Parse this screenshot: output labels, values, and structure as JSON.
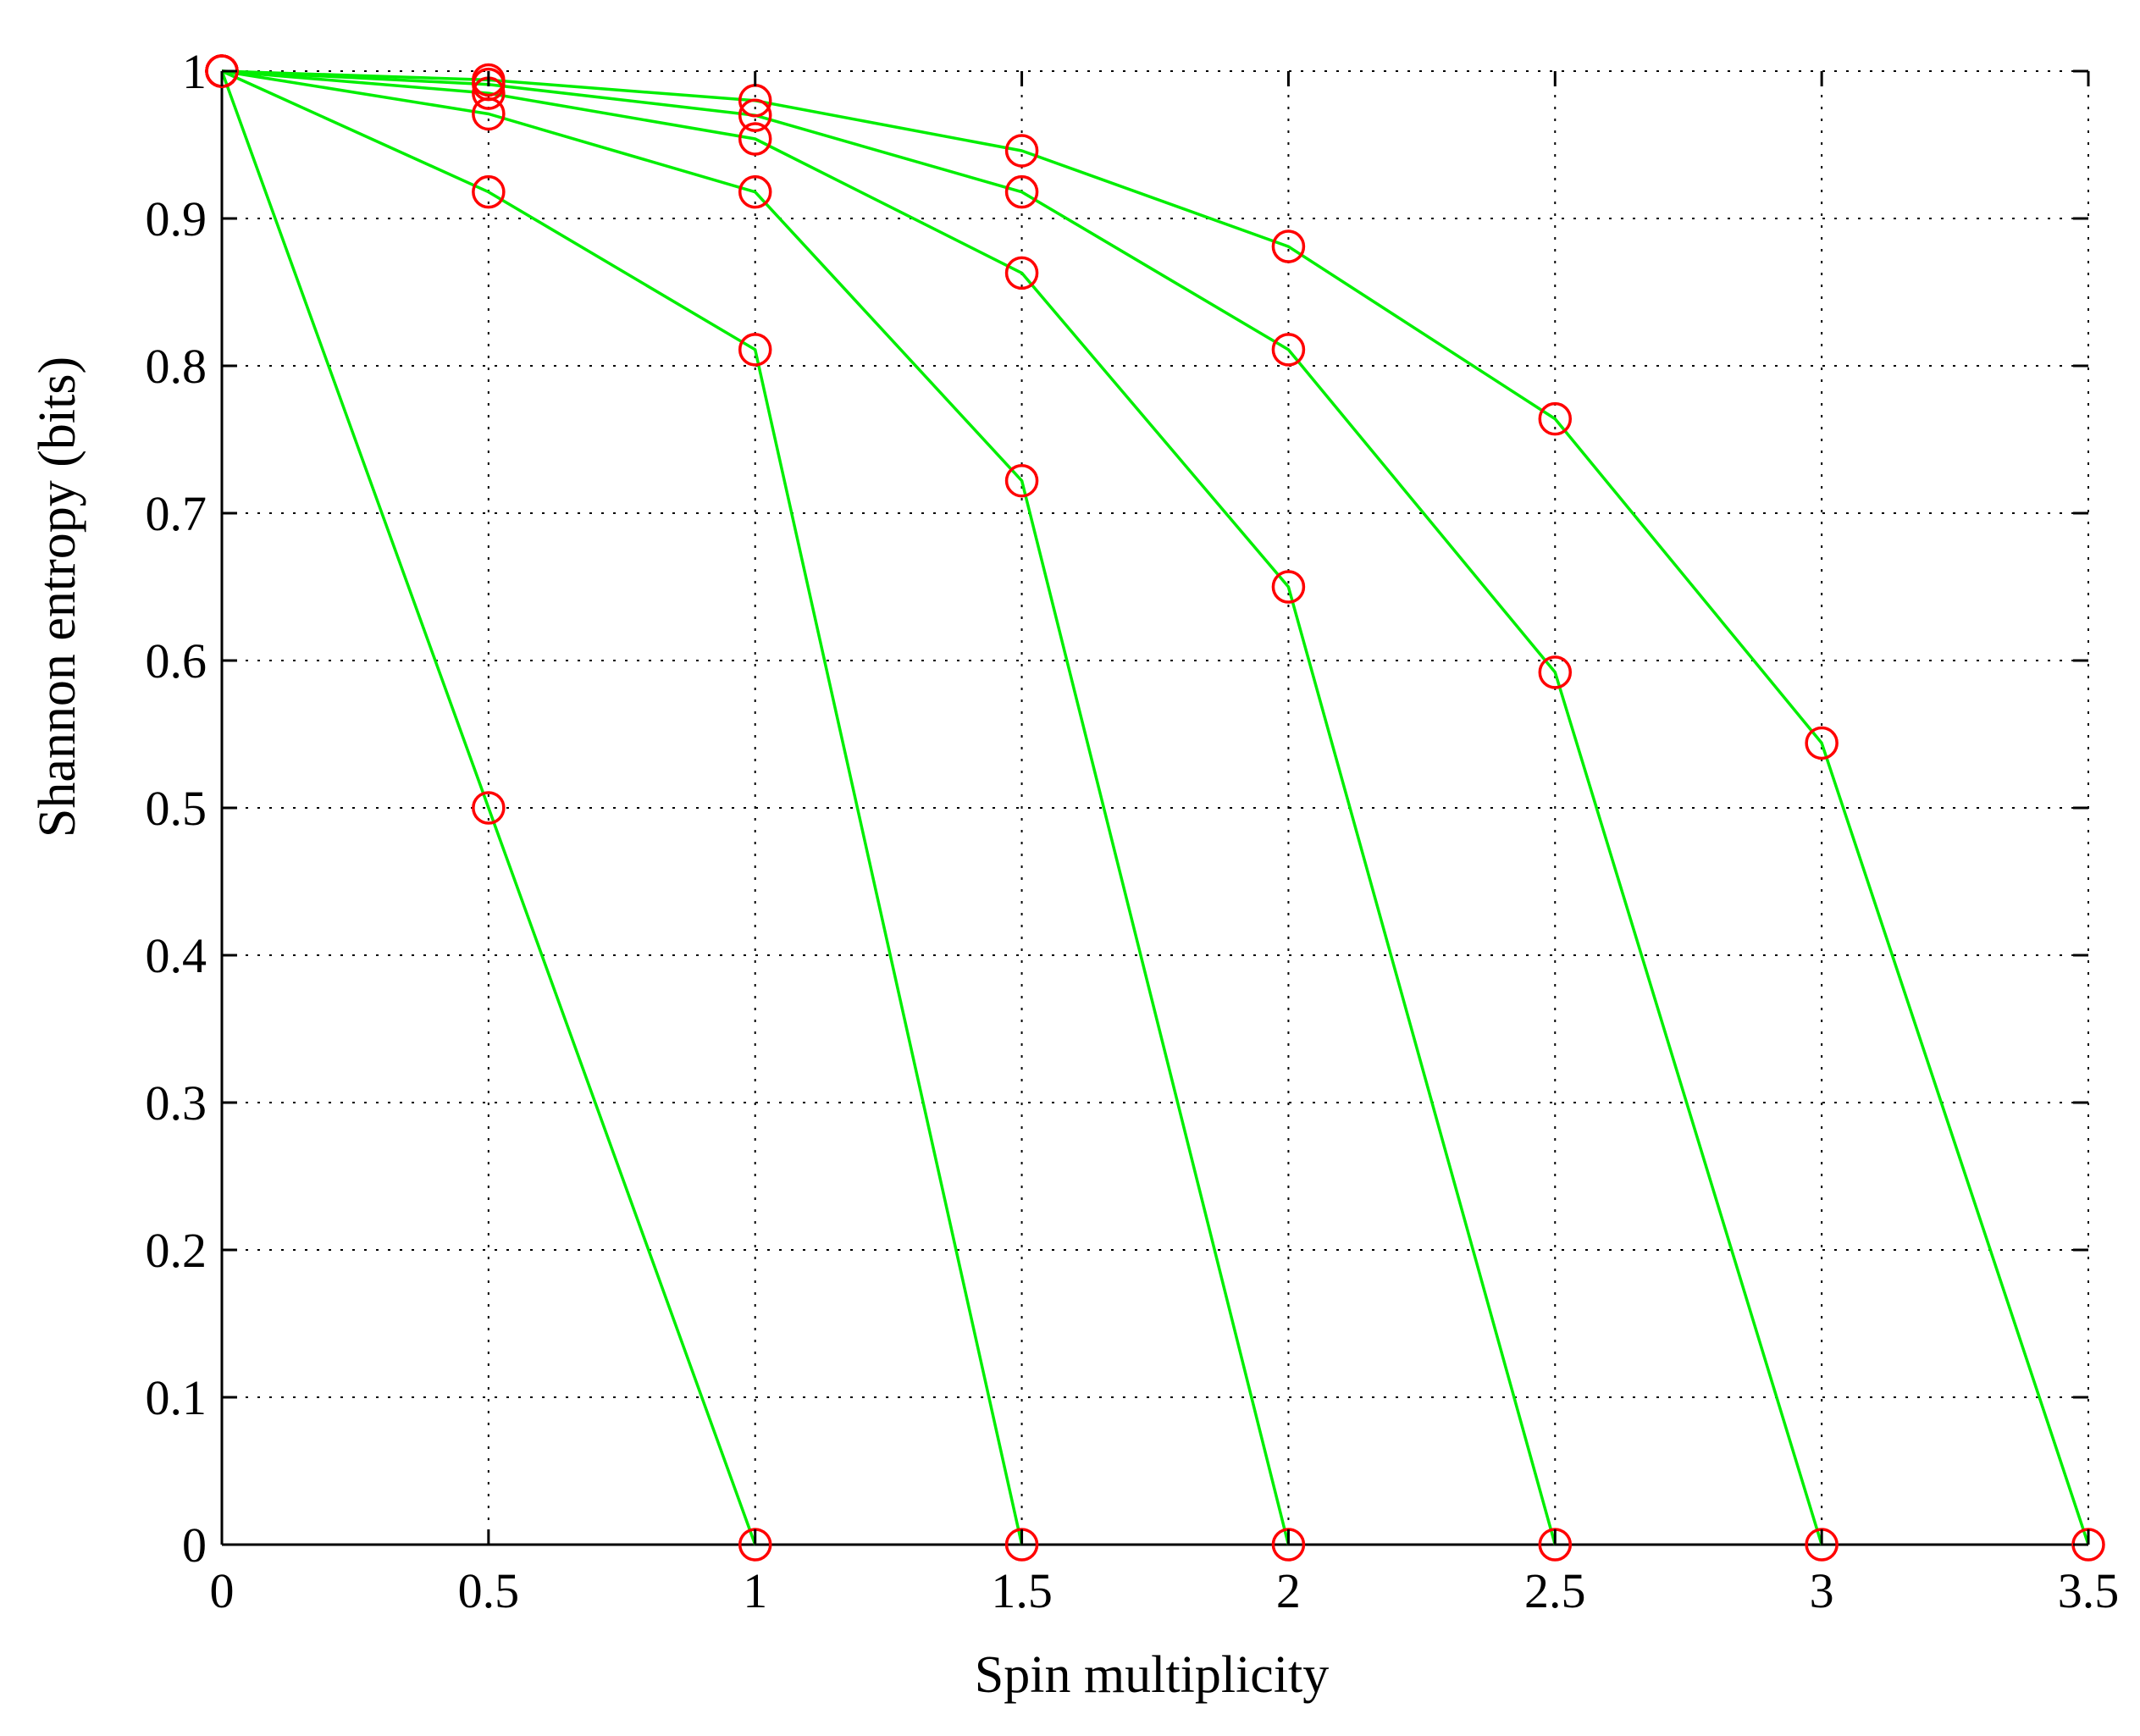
{
  "chart_data": {
    "type": "line",
    "xlabel": "Spin multiplicity",
    "ylabel": "Shannon entropy (bits)",
    "xlim": [
      0,
      3.5
    ],
    "ylim": [
      0,
      1
    ],
    "x_ticks": [
      "0",
      "0.5",
      "1",
      "1.5",
      "2",
      "2.5",
      "3",
      "3.5"
    ],
    "y_ticks": [
      "0",
      "0.1",
      "0.2",
      "0.3",
      "0.4",
      "0.5",
      "0.6",
      "0.7",
      "0.8",
      "0.9",
      "1"
    ],
    "grid": true,
    "line_color": "#00ee00",
    "marker_color": "#ff0000",
    "marker": "circle",
    "series": [
      {
        "x": [
          0,
          0.5,
          1.0
        ],
        "y": [
          1,
          0.5,
          0
        ]
      },
      {
        "x": [
          0,
          0.5,
          1.0,
          1.5
        ],
        "y": [
          1,
          0.918,
          0.811,
          0
        ]
      },
      {
        "x": [
          0,
          0.5,
          1.0,
          1.5,
          2.0
        ],
        "y": [
          1,
          0.971,
          0.918,
          0.722,
          0
        ]
      },
      {
        "x": [
          0,
          0.5,
          1.0,
          1.5,
          2.0,
          2.5
        ],
        "y": [
          1,
          0.985,
          0.954,
          0.863,
          0.65,
          0
        ]
      },
      {
        "x": [
          0,
          0.5,
          1.0,
          1.5,
          2.0,
          2.5,
          3.0
        ],
        "y": [
          1,
          0.991,
          0.97,
          0.918,
          0.811,
          0.592,
          0
        ]
      },
      {
        "x": [
          0,
          0.5,
          1.0,
          1.5,
          2.0,
          2.5,
          3.0,
          3.5
        ],
        "y": [
          1,
          0.994,
          0.98,
          0.946,
          0.881,
          0.764,
          0.544,
          0
        ]
      }
    ]
  }
}
